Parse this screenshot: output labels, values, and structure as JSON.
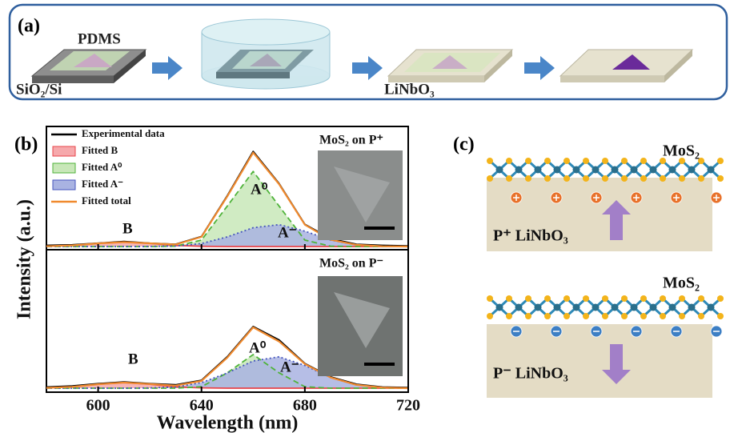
{
  "panel_labels": [
    "(a)",
    "(b)",
    "(c)"
  ],
  "panel_a": {
    "pdms": "PDMS",
    "substrate": "SiO₂/Si",
    "target": "LiNbO₃"
  },
  "panel_c": {
    "top": {
      "layer": "MoS₂",
      "substrate": "P⁺ LiNbO₃"
    },
    "bottom": {
      "layer": "MoS₂",
      "substrate": "P⁻ LiNbO₃"
    }
  },
  "chart_data": [
    {
      "type": "line",
      "legend": "upper left",
      "xlim": [
        580,
        720
      ],
      "ylim": [
        0,
        1
      ],
      "x": [
        580,
        590,
        600,
        610,
        620,
        630,
        640,
        650,
        660,
        670,
        680,
        690,
        700,
        710,
        720
      ],
      "inset_caption": "MoS₂ on P⁺",
      "annotations": [
        "B",
        "A⁰",
        "A⁻"
      ],
      "series": [
        {
          "name": "Experimental data",
          "color": "#000000",
          "line_style": "solid",
          "values": [
            0.01,
            0.015,
            0.03,
            0.045,
            0.03,
            0.02,
            0.09,
            0.46,
            0.86,
            0.57,
            0.2,
            0.07,
            0.02,
            0.01,
            0.005
          ]
        },
        {
          "name": "Fitted B",
          "color": "#e8444a",
          "fill": "#f6a9ac",
          "line_style": "solid",
          "values": [
            0.002,
            0.01,
            0.028,
            0.04,
            0.028,
            0.01,
            0.002,
            0,
            0,
            0,
            0,
            0,
            0,
            0,
            0
          ]
        },
        {
          "name": "Fitted A⁰",
          "color": "#4fb33a",
          "fill": "#c8e7b8",
          "line_style": "dashed",
          "values": [
            0,
            0,
            0,
            0,
            0,
            0.003,
            0.058,
            0.367,
            0.68,
            0.367,
            0.058,
            0.003,
            0,
            0,
            0
          ]
        },
        {
          "name": "Fitted A⁻",
          "color": "#4656bd",
          "fill": "#a9b3e2",
          "line_style": "dotted",
          "values": [
            0,
            0,
            0,
            0,
            0.001,
            0.005,
            0.027,
            0.087,
            0.17,
            0.198,
            0.139,
            0.058,
            0.015,
            0.002,
            0
          ]
        },
        {
          "name": "Fitted total",
          "color": "#f08a2e",
          "line_style": "solid",
          "values": [
            0.002,
            0.01,
            0.028,
            0.04,
            0.029,
            0.018,
            0.087,
            0.454,
            0.85,
            0.565,
            0.197,
            0.061,
            0.015,
            0.002,
            0
          ]
        }
      ]
    },
    {
      "type": "line",
      "xlim": [
        580,
        720
      ],
      "ylim": [
        0,
        1
      ],
      "x": [
        580,
        590,
        600,
        610,
        620,
        630,
        640,
        650,
        660,
        670,
        680,
        690,
        700,
        710,
        720
      ],
      "xticks": [
        600,
        640,
        680,
        720
      ],
      "xlabel": "Wavelength (nm)",
      "ylabel": "Intensity (a.u.)",
      "inset_caption": "MoS₂ on P⁻",
      "annotations": [
        "B",
        "A⁰",
        "A⁻"
      ],
      "series": [
        {
          "color": "#000000",
          "line_style": "solid",
          "values": [
            0.01,
            0.02,
            0.04,
            0.055,
            0.04,
            0.03,
            0.07,
            0.28,
            0.55,
            0.43,
            0.22,
            0.1,
            0.035,
            0.01,
            0.005
          ]
        },
        {
          "color": "#e8444a",
          "fill": "#f6a9ac",
          "line_style": "solid",
          "values": [
            0.003,
            0.012,
            0.035,
            0.05,
            0.035,
            0.012,
            0.003,
            0,
            0,
            0,
            0,
            0,
            0,
            0,
            0
          ]
        },
        {
          "color": "#4fb33a",
          "fill": "#c8e7b8",
          "line_style": "dashed",
          "values": [
            0,
            0,
            0,
            0,
            0,
            0,
            0.013,
            0.137,
            0.3,
            0.137,
            0.013,
            0,
            0,
            0,
            0
          ]
        },
        {
          "color": "#4656bd",
          "fill": "#a9b3e2",
          "line_style": "dotted",
          "values": [
            0,
            0,
            0,
            0,
            0.002,
            0.011,
            0.049,
            0.136,
            0.243,
            0.28,
            0.203,
            0.095,
            0.029,
            0.006,
            0
          ]
        },
        {
          "color": "#f08a2e",
          "line_style": "solid",
          "values": [
            0.003,
            0.012,
            0.035,
            0.05,
            0.037,
            0.023,
            0.064,
            0.273,
            0.543,
            0.417,
            0.216,
            0.095,
            0.029,
            0.006,
            0
          ]
        }
      ]
    }
  ]
}
